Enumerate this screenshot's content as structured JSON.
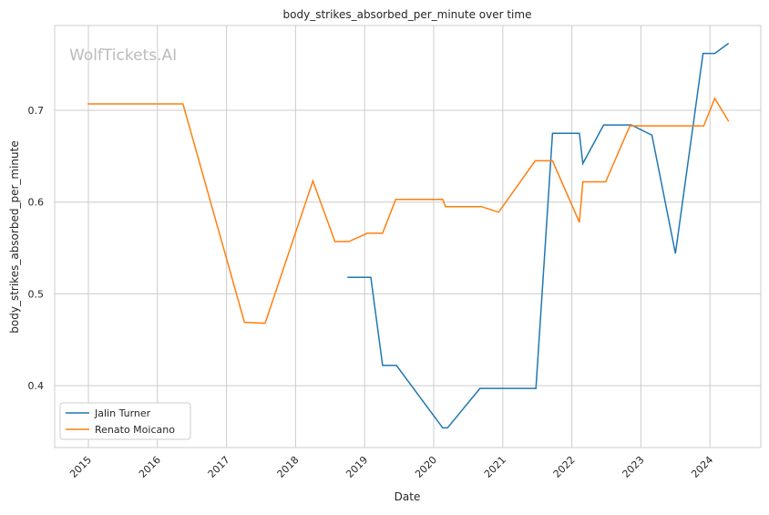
{
  "chart_data": {
    "type": "line",
    "title": "body_strikes_absorbed_per_minute over time",
    "xlabel": "Date",
    "ylabel": "body_strikes_absorbed_per_minute",
    "watermark": "WolfTickets.AI",
    "xlim": [
      2014.5,
      2024.8
    ],
    "ylim": [
      0.336,
      0.796
    ],
    "xticks": [
      2015,
      2016,
      2017,
      2018,
      2019,
      2020,
      2021,
      2022,
      2023,
      2024
    ],
    "xtick_labels": [
      "2015",
      "2016",
      "2017",
      "2018",
      "2019",
      "2020",
      "2021",
      "2022",
      "2023",
      "2024"
    ],
    "yticks": [
      0.4,
      0.5,
      0.6,
      0.7
    ],
    "ytick_labels": [
      "0.4",
      "0.5",
      "0.6",
      "0.7"
    ],
    "grid": true,
    "legend_position": "lower-left",
    "series": [
      {
        "name": "Jalin Turner",
        "color": "#1f77b4",
        "x": [
          2018.75,
          2019.09,
          2019.26,
          2019.46,
          2020.13,
          2020.2,
          2020.67,
          2021.48,
          2021.72,
          2022.11,
          2022.16,
          2022.46,
          2022.86,
          2023.16,
          2023.5,
          2023.9,
          2024.07,
          2024.27
        ],
        "y": [
          0.518,
          0.518,
          0.422,
          0.422,
          0.354,
          0.354,
          0.397,
          0.397,
          0.675,
          0.675,
          0.642,
          0.684,
          0.684,
          0.673,
          0.544,
          0.762,
          0.762,
          0.773
        ]
      },
      {
        "name": "Renato Moicano",
        "color": "#ff7f0e",
        "x": [
          2014.99,
          2016.37,
          2017.26,
          2017.56,
          2018.25,
          2018.57,
          2018.77,
          2019.04,
          2019.26,
          2019.45,
          2020.13,
          2020.17,
          2020.69,
          2020.94,
          2021.47,
          2021.72,
          2022.11,
          2022.16,
          2022.49,
          2022.84,
          2023.91,
          2024.07,
          2024.27
        ],
        "y": [
          0.707,
          0.707,
          0.469,
          0.468,
          0.623,
          0.557,
          0.557,
          0.566,
          0.566,
          0.603,
          0.603,
          0.595,
          0.595,
          0.589,
          0.645,
          0.645,
          0.578,
          0.622,
          0.622,
          0.683,
          0.683,
          0.713,
          0.688
        ]
      }
    ]
  }
}
